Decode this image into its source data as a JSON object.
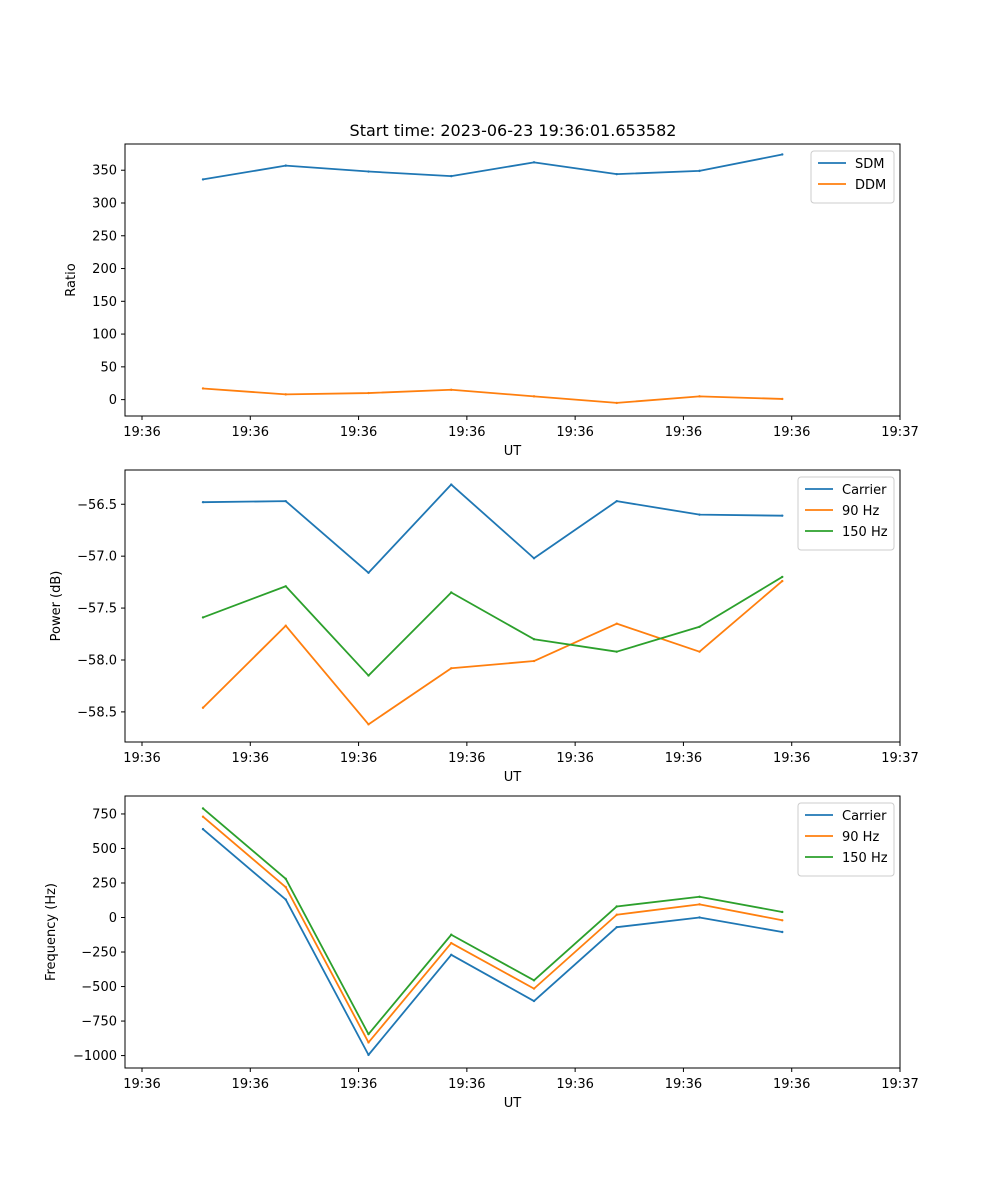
{
  "figure_title": "Start time: 2023-06-23 19:36:01.653582",
  "chart_data": [
    {
      "type": "line",
      "xlabel": "UT",
      "ylabel": "Ratio",
      "x_ticks": [
        "19:36",
        "19:36",
        "19:36",
        "19:36",
        "19:36",
        "19:36",
        "19:36"
      ],
      "x_tick_last": "19:37",
      "ylim": [
        -25,
        390
      ],
      "y_ticks": [
        0,
        50,
        100,
        150,
        200,
        250,
        300,
        350
      ],
      "legend_position": "top-right",
      "series": [
        {
          "name": "SDM",
          "color": "#1f77b4",
          "values": [
            336,
            357,
            348,
            341,
            362,
            344,
            349,
            374
          ]
        },
        {
          "name": "DDM",
          "color": "#ff7f0e",
          "values": [
            17,
            8,
            10,
            15,
            5,
            -5,
            5,
            1
          ]
        }
      ]
    },
    {
      "type": "line",
      "xlabel": "UT",
      "ylabel": "Power (dB)",
      "x_ticks": [
        "19:36",
        "19:36",
        "19:36",
        "19:36",
        "19:36",
        "19:36",
        "19:36"
      ],
      "x_tick_last": "19:37",
      "ylim": [
        -58.79,
        -56.17
      ],
      "y_ticks": [
        -58.5,
        -58.0,
        -57.5,
        -57.0,
        -56.5
      ],
      "y_tick_labels": [
        "−58.5",
        "−58.0",
        "−57.5",
        "−57.0",
        "−56.5"
      ],
      "legend_position": "top-right",
      "series": [
        {
          "name": "Carrier",
          "color": "#1f77b4",
          "values": [
            -56.48,
            -56.47,
            -57.16,
            -56.31,
            -57.02,
            -56.47,
            -56.6,
            -56.61
          ]
        },
        {
          "name": "90 Hz",
          "color": "#ff7f0e",
          "values": [
            -58.46,
            -57.67,
            -58.62,
            -58.08,
            -58.01,
            -57.65,
            -57.92,
            -57.24
          ]
        },
        {
          "name": "150 Hz",
          "color": "#2ca02c",
          "values": [
            -57.59,
            -57.29,
            -58.15,
            -57.35,
            -57.8,
            -57.92,
            -57.68,
            -57.2
          ]
        }
      ]
    },
    {
      "type": "line",
      "xlabel": "UT",
      "ylabel": "Frequency (Hz)",
      "x_ticks": [
        "19:36",
        "19:36",
        "19:36",
        "19:36",
        "19:36",
        "19:36",
        "19:36"
      ],
      "x_tick_last": "19:37",
      "ylim": [
        -1090,
        880
      ],
      "y_ticks": [
        -1000,
        -750,
        -500,
        -250,
        0,
        250,
        500,
        750
      ],
      "y_tick_labels": [
        "−1000",
        "−750",
        "−500",
        "−250",
        "0",
        "250",
        "500",
        "750"
      ],
      "legend_position": "top-right",
      "series": [
        {
          "name": "Carrier",
          "color": "#1f77b4",
          "values": [
            640,
            130,
            -995,
            -270,
            -605,
            -70,
            0,
            -105
          ]
        },
        {
          "name": "90 Hz",
          "color": "#ff7f0e",
          "values": [
            730,
            220,
            -905,
            -185,
            -515,
            20,
            95,
            -20
          ]
        },
        {
          "name": "150 Hz",
          "color": "#2ca02c",
          "values": [
            790,
            280,
            -845,
            -125,
            -455,
            80,
            150,
            40
          ]
        }
      ]
    }
  ]
}
